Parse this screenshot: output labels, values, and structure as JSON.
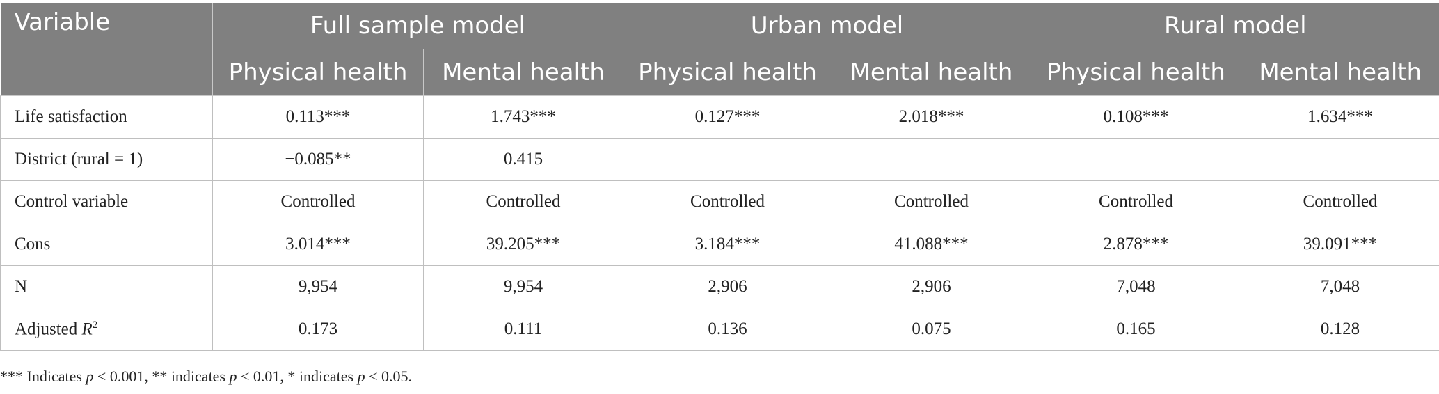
{
  "table": {
    "variable_header": "Variable",
    "groups": [
      "Full sample model",
      "Urban model",
      "Rural model"
    ],
    "subheaders": [
      "Physical health",
      "Mental health",
      "Physical health",
      "Mental health",
      "Physical health",
      "Mental health"
    ],
    "rows": [
      {
        "label": "Life satisfaction",
        "cells": [
          "0.113***",
          "1.743***",
          "0.127***",
          "2.018***",
          "0.108***",
          "1.634***"
        ]
      },
      {
        "label": "District (rural = 1)",
        "cells": [
          "−0.085**",
          "0.415",
          "",
          "",
          "",
          ""
        ]
      },
      {
        "label": "Control variable",
        "cells": [
          "Controlled",
          "Controlled",
          "Controlled",
          "Controlled",
          "Controlled",
          "Controlled"
        ]
      },
      {
        "label": "Cons",
        "cells": [
          "3.014***",
          "39.205***",
          "3.184***",
          "41.088***",
          "2.878***",
          "39.091***"
        ]
      },
      {
        "label": "N",
        "cells": [
          "9,954",
          "9,954",
          "2,906",
          "2,906",
          "7,048",
          "7,048"
        ]
      },
      {
        "label": "Adjusted",
        "label_italic": "R",
        "label_sup": "2",
        "cells": [
          "0.173",
          "0.111",
          "0.136",
          "0.075",
          "0.165",
          "0.128"
        ]
      }
    ]
  },
  "note": {
    "p1": "*** Indicates ",
    "p": "p",
    "p2": " < 0.001, ** indicates ",
    "p3": " < 0.01, * indicates ",
    "p4": " < 0.05."
  }
}
